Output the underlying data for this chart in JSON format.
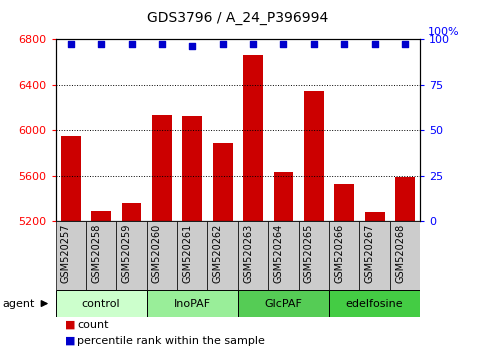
{
  "title": "GDS3796 / A_24_P396994",
  "samples": [
    "GSM520257",
    "GSM520258",
    "GSM520259",
    "GSM520260",
    "GSM520261",
    "GSM520262",
    "GSM520263",
    "GSM520264",
    "GSM520265",
    "GSM520266",
    "GSM520267",
    "GSM520268"
  ],
  "bar_values": [
    5950,
    5290,
    5360,
    6130,
    6120,
    5890,
    6660,
    5630,
    6340,
    5530,
    5280,
    5590
  ],
  "percentile_values": [
    97,
    97,
    97,
    97,
    96,
    97,
    97,
    97,
    97,
    97,
    97,
    97
  ],
  "bar_color": "#cc0000",
  "percentile_color": "#0000cc",
  "ylim_left": [
    5200,
    6800
  ],
  "ylim_right": [
    0,
    100
  ],
  "yticks_left": [
    5200,
    5600,
    6000,
    6400,
    6800
  ],
  "yticks_right": [
    0,
    25,
    50,
    75,
    100
  ],
  "groups": [
    {
      "label": "control",
      "start": 0,
      "end": 3,
      "color": "#ccffcc"
    },
    {
      "label": "InoPAF",
      "start": 3,
      "end": 6,
      "color": "#99ee99"
    },
    {
      "label": "GlcPAF",
      "start": 6,
      "end": 9,
      "color": "#55cc55"
    },
    {
      "label": "edelfosine",
      "start": 9,
      "end": 12,
      "color": "#44cc44"
    }
  ],
  "agent_label": "agent",
  "legend_count_label": "count",
  "legend_pct_label": "percentile rank within the sample",
  "plot_bg_color": "#ffffff",
  "label_box_color": "#cccccc",
  "title_fontsize": 10,
  "tick_fontsize": 8,
  "label_fontsize": 7,
  "group_fontsize": 8
}
